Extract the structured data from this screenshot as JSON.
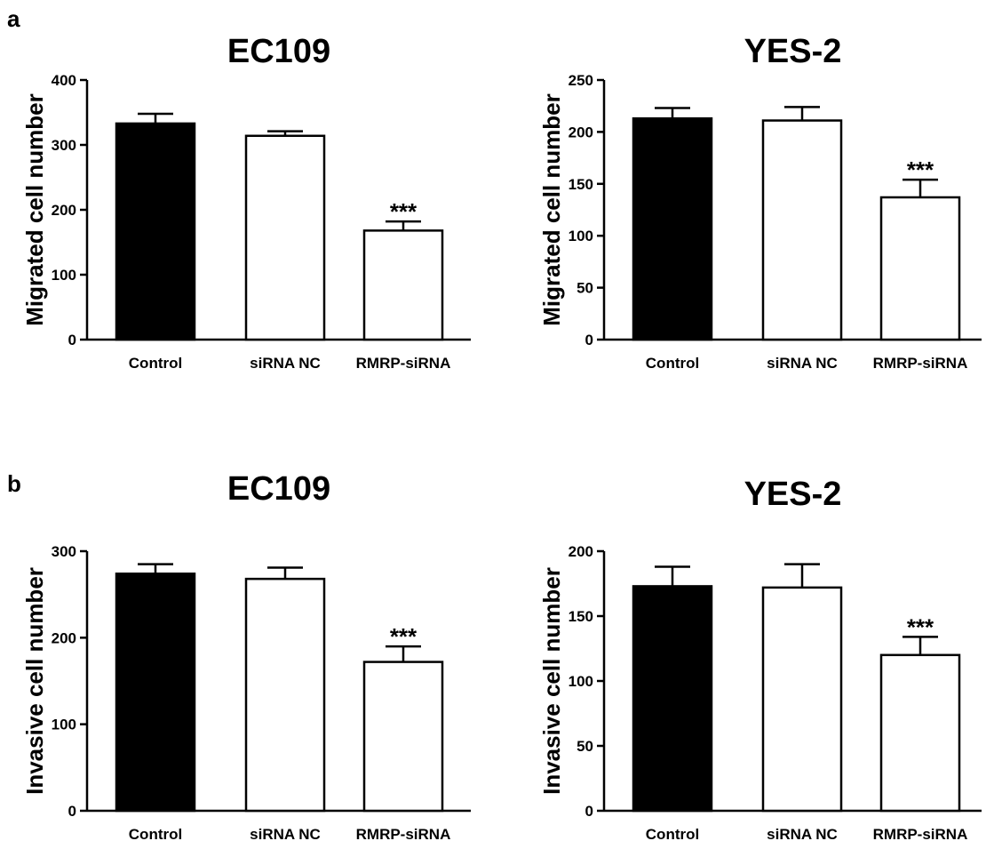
{
  "panels": [
    "a",
    "b"
  ],
  "chart_data": [
    {
      "type": "bar",
      "panel": "a",
      "title": "EC109",
      "ylabel": "Migrated cell number",
      "categories": [
        "Control",
        "siRNA NC",
        "RMRP-siRNA"
      ],
      "values": [
        333,
        314,
        168
      ],
      "errors": [
        15,
        7,
        14
      ],
      "significance": [
        "",
        "",
        "***"
      ],
      "fills": [
        "#000000",
        "#ffffff",
        "#ffffff"
      ],
      "ylim": [
        0,
        400
      ],
      "yticks": [
        0,
        100,
        200,
        300,
        400
      ],
      "grid": false
    },
    {
      "type": "bar",
      "panel": "a",
      "title": "YES-2",
      "ylabel": "Migrated cell number",
      "categories": [
        "Control",
        "siRNA NC",
        "RMRP-siRNA"
      ],
      "values": [
        213,
        211,
        137
      ],
      "errors": [
        10,
        13,
        17
      ],
      "significance": [
        "",
        "",
        "***"
      ],
      "fills": [
        "#000000",
        "#ffffff",
        "#ffffff"
      ],
      "ylim": [
        0,
        250
      ],
      "yticks": [
        0,
        50,
        100,
        150,
        200,
        250
      ],
      "grid": false
    },
    {
      "type": "bar",
      "panel": "b",
      "title": "EC109",
      "ylabel": "Invasive cell number",
      "categories": [
        "Control",
        "siRNA NC",
        "RMRP-siRNA"
      ],
      "values": [
        274,
        268,
        172
      ],
      "errors": [
        11,
        13,
        18
      ],
      "significance": [
        "",
        "",
        "***"
      ],
      "fills": [
        "#000000",
        "#ffffff",
        "#ffffff"
      ],
      "ylim": [
        0,
        300
      ],
      "yticks": [
        0,
        100,
        200,
        300
      ],
      "grid": false
    },
    {
      "type": "bar",
      "panel": "b",
      "title": "YES-2",
      "ylabel": "Invasive cell number",
      "categories": [
        "Control",
        "siRNA NC",
        "RMRP-siRNA"
      ],
      "values": [
        173,
        172,
        120
      ],
      "errors": [
        15,
        18,
        14
      ],
      "significance": [
        "",
        "",
        "***"
      ],
      "fills": [
        "#000000",
        "#ffffff",
        "#ffffff"
      ],
      "ylim": [
        0,
        200
      ],
      "yticks": [
        0,
        50,
        100,
        150,
        200
      ],
      "grid": false
    }
  ]
}
